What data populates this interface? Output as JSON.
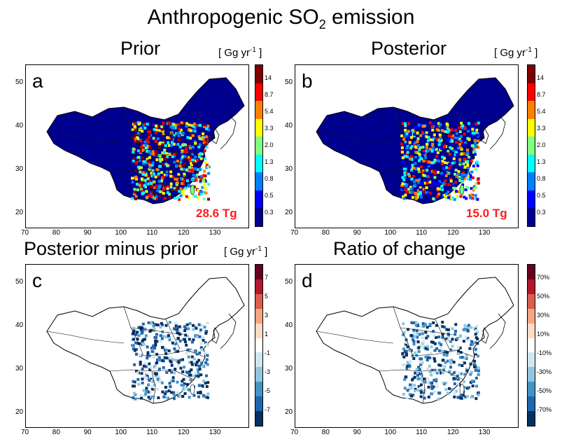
{
  "title_main": "Anthropogenic SO",
  "title_sub": "2",
  "title_tail": " emission",
  "panels": [
    {
      "id": "a",
      "title": "Prior",
      "total": "28.6 Tg",
      "units": {
        "pre": "[ Gg yr",
        "sup": "-1",
        "post": " ]"
      },
      "colorbar": {
        "ticks": [
          "14",
          "8.7",
          "5.4",
          "3.3",
          "2.0",
          "1.3",
          "0.8",
          "0.5",
          "0.3"
        ],
        "colors": [
          "#7f0000",
          "#ff0000",
          "#ff8000",
          "#ffff00",
          "#80ff80",
          "#00ffff",
          "#0080ff",
          "#0000ff",
          "#00008f"
        ]
      }
    },
    {
      "id": "b",
      "title": "Posterior",
      "total": "15.0 Tg",
      "units": {
        "pre": "[ Gg yr",
        "sup": "-1",
        "post": " ]"
      },
      "colorbar": {
        "ticks": [
          "14",
          "8.7",
          "5.4",
          "3.3",
          "2.0",
          "1.3",
          "0.8",
          "0.5",
          "0.3"
        ],
        "colors": [
          "#7f0000",
          "#ff0000",
          "#ff8000",
          "#ffff00",
          "#80ff80",
          "#00ffff",
          "#0080ff",
          "#0000ff",
          "#00008f"
        ]
      }
    },
    {
      "id": "c",
      "title": "Posterior minus prior",
      "units": {
        "pre": "[ Gg yr",
        "sup": "-1",
        "post": " ]"
      },
      "colorbar": {
        "ticks": [
          "7",
          "5",
          "3",
          "1",
          "-1",
          "-3",
          "-5",
          "-7"
        ],
        "colors": [
          "#67001f",
          "#b2182b",
          "#d6604d",
          "#f4a582",
          "#fddbc7",
          "#ffffff",
          "#d1e5f0",
          "#92c5de",
          "#4393c3",
          "#2166ac",
          "#053061"
        ]
      }
    },
    {
      "id": "d",
      "title": "Ratio of change",
      "colorbar": {
        "ticks": [
          "70%",
          "50%",
          "30%",
          "10%",
          "-10%",
          "-30%",
          "-50%",
          "-70%"
        ],
        "colors": [
          "#67001f",
          "#b2182b",
          "#d6604d",
          "#f4a582",
          "#fddbc7",
          "#ffffff",
          "#d1e5f0",
          "#92c5de",
          "#4393c3",
          "#2166ac",
          "#053061"
        ]
      }
    }
  ],
  "axes": {
    "lon_ticks": [
      "70",
      "80",
      "90",
      "100",
      "110",
      "120",
      "130"
    ],
    "lat_ticks": [
      "50",
      "40",
      "30",
      "20"
    ]
  }
}
